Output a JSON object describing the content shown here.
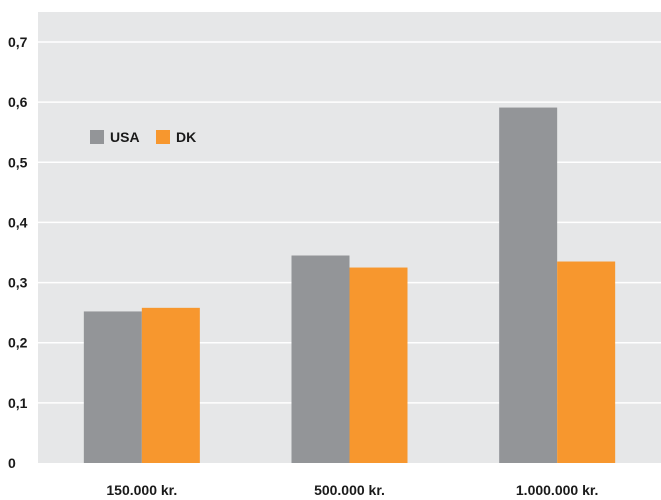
{
  "chart_data": {
    "type": "bar",
    "categories": [
      "150.000 kr.",
      "500.000 kr.",
      "1.000.000 kr."
    ],
    "series": [
      {
        "name": "USA",
        "values": [
          0.252,
          0.345,
          0.591
        ],
        "color": "#939598"
      },
      {
        "name": "DK",
        "values": [
          0.258,
          0.325,
          0.335
        ],
        "color": "#f7972e"
      }
    ],
    "y_ticks": [
      "0",
      "0,1",
      "0,2",
      "0,3",
      "0,4",
      "0,5",
      "0,6",
      "0,7"
    ],
    "ylim": [
      0,
      0.75
    ],
    "grid": true,
    "legend_position": "top-left",
    "background_color": "#e6e7e8",
    "gridline_color": "#ffffff",
    "title": "",
    "xlabel": "",
    "ylabel": ""
  }
}
